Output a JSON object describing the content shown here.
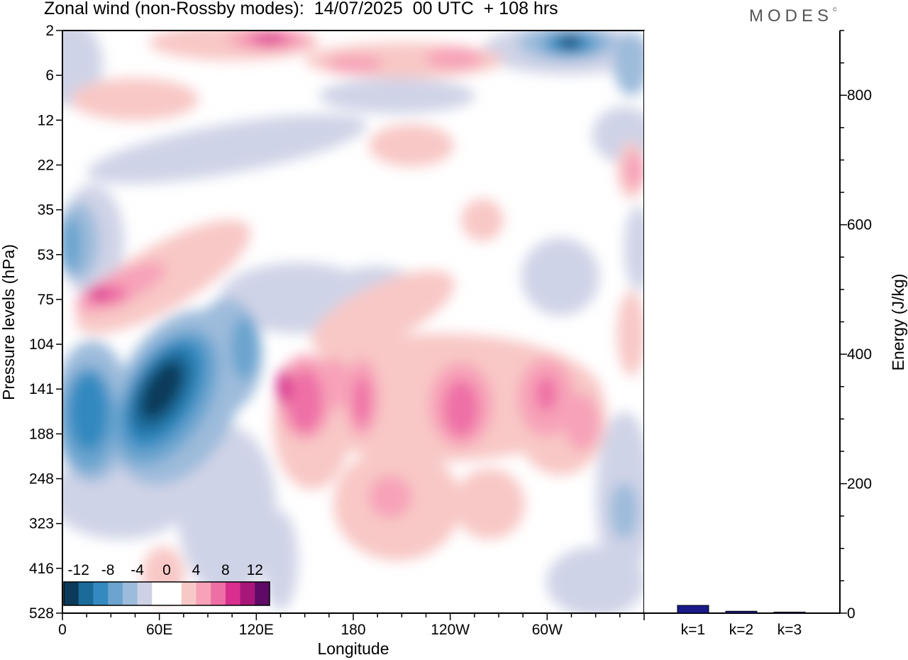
{
  "title": "Zonal wind (non-Rossby modes):  14/07/2025  00 UTC  + 108 hrs",
  "brand": "MODES",
  "brand_mark": "©",
  "chart_data": [
    {
      "type": "heatmap",
      "title": "Zonal wind (non-Rossby modes):  14/07/2025  00 UTC  + 108 hrs",
      "xlabel": "Longitude",
      "ylabel": "Pressure levels (hPa)",
      "x_ticks": [
        "0",
        "60E",
        "120E",
        "180",
        "120W",
        "60W"
      ],
      "x_tick_values": [
        0,
        60,
        120,
        180,
        240,
        300
      ],
      "xlim": [
        0,
        360
      ],
      "y_ticks": [
        "2",
        "6",
        "12",
        "22",
        "35",
        "53",
        "75",
        "104",
        "141",
        "188",
        "248",
        "323",
        "416",
        "528"
      ],
      "colorbar": {
        "labels": [
          "-12",
          "-8",
          "-4",
          "0",
          "4",
          "8",
          "12"
        ],
        "colors": [
          "#0b3a5a",
          "#1a6b9a",
          "#3389c0",
          "#6aa4cf",
          "#9dbbdb",
          "#cdd1e6",
          "#ffffff",
          "#ffffff",
          "#f8c8c6",
          "#f7a2b8",
          "#ee6fa6",
          "#d82e8e",
          "#a8167a",
          "#5e0a66"
        ]
      },
      "features": [
        {
          "lon": 63,
          "level": "141",
          "value": -14
        },
        {
          "lon": 15,
          "level": "155",
          "value": -11
        },
        {
          "lon": 315,
          "level": "3",
          "value": -14
        },
        {
          "lon": 17,
          "level": "75",
          "value": 9
        },
        {
          "lon": 137,
          "level": "141",
          "value": 9
        },
        {
          "lon": 240,
          "level": "141",
          "value": 9
        },
        {
          "lon": 126,
          "level": "2",
          "value": 9
        }
      ]
    },
    {
      "type": "bar",
      "categories": [
        "k=1",
        "k=2",
        "k=3"
      ],
      "values": [
        12,
        3,
        1
      ],
      "ylabel": "Energy (J/kg)",
      "ylim": [
        0,
        900
      ],
      "y_ticks": [
        0,
        200,
        400,
        600,
        800
      ],
      "bar_color": "#1a1a8a"
    }
  ]
}
